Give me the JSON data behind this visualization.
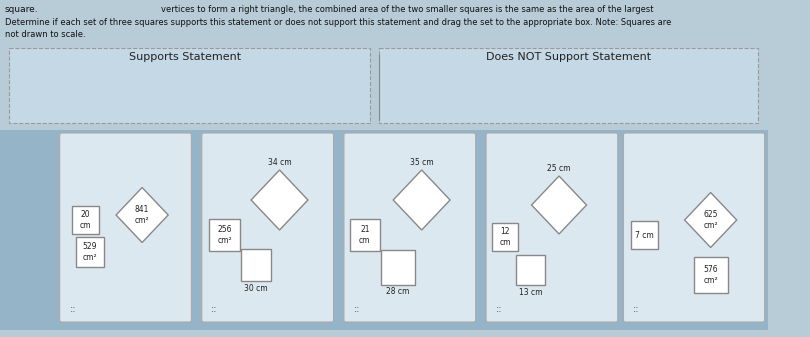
{
  "title_text": "square.",
  "header_line1": "vertices to form a right triangle, the combined area of the two smaller squares is the same as the area of the largest",
  "header_line2": "Determine if each set of three squares supports this statement or does not support this statement and drag the set to the appropriate box. Note: Squares are",
  "header_line3": "not drawn to scale.",
  "supports_label": "Supports Statement",
  "does_not_label": "Does NOT Support Statement",
  "bg_color": "#c8d8e8",
  "card_bg": "#f0f4f8",
  "card_border": "#cccccc",
  "dashed_box_color": "#aaaaaa",
  "text_color": "#222222",
  "sets": [
    {
      "small_sq_label": "20\ncm",
      "small_sq_area": "",
      "medium_sq_area": "529\ncm²",
      "diamond_area": "841\ncm²",
      "hash_label": "::"
    },
    {
      "top_label": "34 cm",
      "small_sq_area": "256\ncm²",
      "bottom_sq_label": "30 cm",
      "diamond_area": "",
      "hash_label": "::"
    },
    {
      "top_label": "35 cm",
      "small_sq_label": "21\ncm",
      "bottom_sq_label": "28 cm",
      "diamond_area": "",
      "hash_label": "::"
    },
    {
      "top_label": "25 cm",
      "small_sq_label": "12\ncm",
      "bottom_sq_label": "13 cm",
      "diamond_area": "",
      "hash_label": "::"
    },
    {
      "small_sq_label": "7 cm",
      "diamond_area": "625\ncm²",
      "bottom_sq_area": "576\ncm²",
      "hash_label": "::"
    }
  ]
}
